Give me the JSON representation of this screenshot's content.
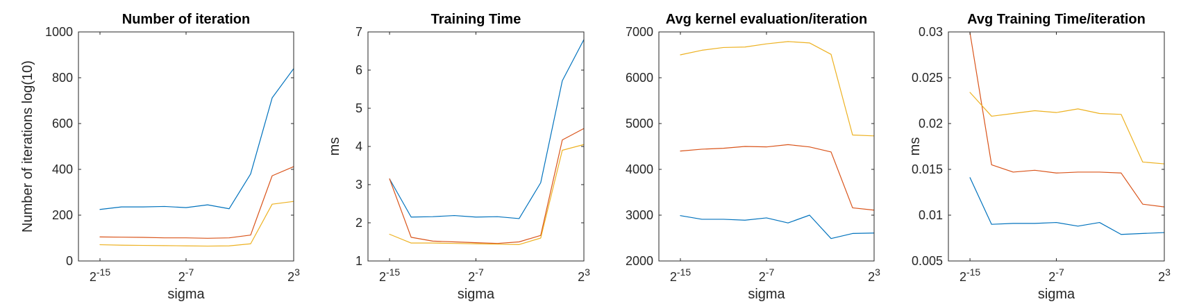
{
  "chart_data": [
    {
      "type": "line",
      "title": "Number of iteration",
      "xlabel": "sigma",
      "ylabel": "Number of iterations log(10)",
      "x": [
        -15,
        -13,
        -11,
        -9,
        -7,
        -5,
        -3,
        -1,
        1,
        3
      ],
      "xticks": [
        -15,
        -7,
        3
      ],
      "xtick_labels": [
        {
          "base": "2",
          "exp": "-15"
        },
        {
          "base": "2",
          "exp": "-7"
        },
        {
          "base": "2",
          "exp": "3"
        }
      ],
      "xlim": [
        -17,
        3
      ],
      "ylim": [
        0,
        1000
      ],
      "yticks": [
        0,
        200,
        400,
        600,
        800,
        1000
      ],
      "ytick_labels": [
        "0",
        "200",
        "400",
        "600",
        "800",
        "1000"
      ],
      "series": [
        {
          "color": "#0072BD",
          "values": [
            225,
            236,
            236,
            238,
            233,
            245,
            228,
            380,
            712,
            840
          ]
        },
        {
          "color": "#D95319",
          "values": [
            105,
            104,
            103,
            101,
            101,
            99,
            101,
            113,
            372,
            412
          ]
        },
        {
          "color": "#EDB120",
          "values": [
            71,
            69,
            68,
            67,
            66,
            65,
            66,
            75,
            248,
            260
          ]
        }
      ],
      "grid": false
    },
    {
      "type": "line",
      "title": "Training Time",
      "xlabel": "sigma",
      "ylabel": "ms",
      "x": [
        -15,
        -13,
        -11,
        -9,
        -7,
        -5,
        -3,
        -1,
        1,
        3
      ],
      "xticks": [
        -15,
        -7,
        3
      ],
      "xtick_labels": [
        {
          "base": "2",
          "exp": "-15"
        },
        {
          "base": "2",
          "exp": "-7"
        },
        {
          "base": "2",
          "exp": "3"
        }
      ],
      "xlim": [
        -17,
        3
      ],
      "ylim": [
        1,
        7
      ],
      "yticks": [
        1,
        2,
        3,
        4,
        5,
        6,
        7
      ],
      "ytick_labels": [
        "1",
        "2",
        "3",
        "4",
        "5",
        "6",
        "7"
      ],
      "series": [
        {
          "color": "#0072BD",
          "values": [
            3.15,
            2.15,
            2.16,
            2.19,
            2.15,
            2.16,
            2.11,
            3.05,
            5.72,
            6.8
          ]
        },
        {
          "color": "#D95319",
          "values": [
            3.15,
            1.62,
            1.52,
            1.5,
            1.48,
            1.46,
            1.5,
            1.67,
            4.17,
            4.47
          ]
        },
        {
          "color": "#EDB120",
          "values": [
            1.7,
            1.47,
            1.47,
            1.46,
            1.45,
            1.44,
            1.43,
            1.6,
            3.9,
            4.05
          ]
        }
      ],
      "grid": false
    },
    {
      "type": "line",
      "title": "Avg kernel evaluation/iteration",
      "xlabel": "sigma",
      "ylabel": "",
      "x": [
        -15,
        -13,
        -11,
        -9,
        -7,
        -5,
        -3,
        -1,
        1,
        3
      ],
      "xticks": [
        -15,
        -7,
        3
      ],
      "xtick_labels": [
        {
          "base": "2",
          "exp": "-15"
        },
        {
          "base": "2",
          "exp": "-7"
        },
        {
          "base": "2",
          "exp": "3"
        }
      ],
      "xlim": [
        -17,
        3
      ],
      "ylim": [
        2000,
        7000
      ],
      "yticks": [
        2000,
        3000,
        4000,
        5000,
        6000,
        7000
      ],
      "ytick_labels": [
        "2000",
        "3000",
        "4000",
        "5000",
        "6000",
        "7000"
      ],
      "series": [
        {
          "color": "#0072BD",
          "values": [
            2990,
            2910,
            2910,
            2890,
            2940,
            2830,
            3000,
            2490,
            2600,
            2610
          ]
        },
        {
          "color": "#D95319",
          "values": [
            4400,
            4440,
            4460,
            4500,
            4490,
            4540,
            4490,
            4380,
            3160,
            3110
          ]
        },
        {
          "color": "#EDB120",
          "values": [
            6500,
            6600,
            6660,
            6670,
            6740,
            6790,
            6760,
            6510,
            4750,
            4730
          ]
        }
      ],
      "grid": false
    },
    {
      "type": "line",
      "title": "Avg Training Time/iteration",
      "xlabel": "sigma",
      "ylabel": "ms",
      "x": [
        -15,
        -13,
        -11,
        -9,
        -7,
        -5,
        -3,
        -1,
        1,
        3
      ],
      "xticks": [
        -15,
        -7,
        3
      ],
      "xtick_labels": [
        {
          "base": "2",
          "exp": "-15"
        },
        {
          "base": "2",
          "exp": "-7"
        },
        {
          "base": "2",
          "exp": "3"
        }
      ],
      "xlim": [
        -17,
        3
      ],
      "ylim": [
        0.005,
        0.03
      ],
      "yticks": [
        0.005,
        0.01,
        0.015,
        0.02,
        0.025,
        0.03
      ],
      "ytick_labels": [
        "0.005",
        "0.01",
        "0.015",
        "0.02",
        "0.025",
        "0.03"
      ],
      "series": [
        {
          "color": "#0072BD",
          "values": [
            0.0141,
            0.009,
            0.0091,
            0.0091,
            0.0092,
            0.0088,
            0.0092,
            0.0079,
            0.008,
            0.0081
          ]
        },
        {
          "color": "#D95319",
          "values": [
            0.0299,
            0.0155,
            0.0147,
            0.0149,
            0.0146,
            0.0147,
            0.0147,
            0.0146,
            0.0112,
            0.0109
          ]
        },
        {
          "color": "#EDB120",
          "values": [
            0.0234,
            0.0208,
            0.0211,
            0.0214,
            0.0212,
            0.0216,
            0.0211,
            0.021,
            0.0158,
            0.0156
          ]
        }
      ],
      "grid": false
    }
  ]
}
